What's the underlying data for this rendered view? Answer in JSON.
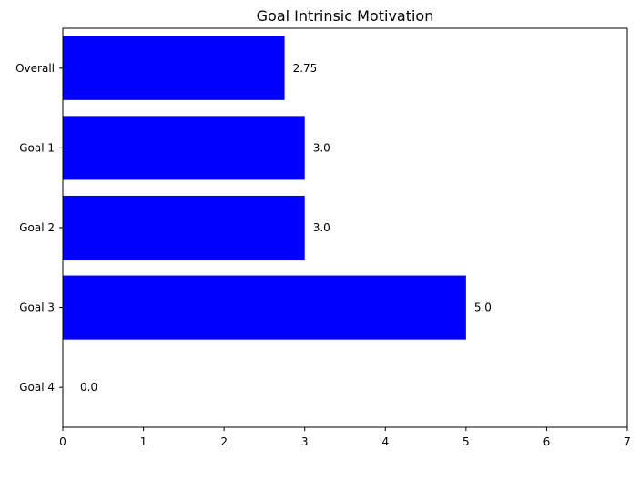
{
  "chart_data": {
    "type": "bar",
    "orientation": "horizontal",
    "title": "Goal Intrinsic Motivation",
    "xlabel": "",
    "ylabel": "",
    "categories": [
      "Overall",
      "Goal 1",
      "Goal 2",
      "Goal 3",
      "Goal 4"
    ],
    "values": [
      2.75,
      3.0,
      3.0,
      5.0,
      0.0
    ],
    "value_labels": [
      "2.75",
      "3.0",
      "3.0",
      "5.0",
      "0.0"
    ],
    "xlim": [
      0,
      7
    ],
    "xticks": [
      0,
      1,
      2,
      3,
      4,
      5,
      6,
      7
    ],
    "grid": false,
    "bar_color": "#0000ff"
  }
}
